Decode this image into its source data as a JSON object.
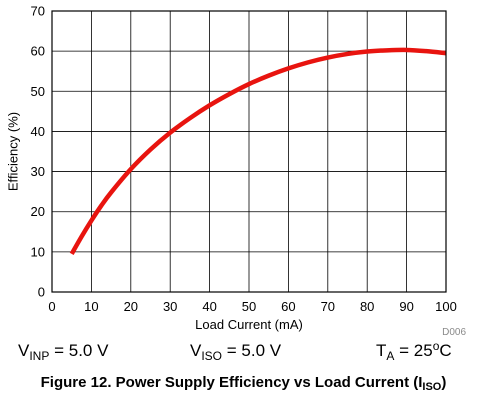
{
  "chart_data": {
    "type": "line",
    "title": "",
    "xlabel": "Load Current (mA)",
    "ylabel": "Efficiency (%)",
    "xlim": [
      0,
      100
    ],
    "ylim": [
      0,
      70
    ],
    "xticks": [
      0,
      10,
      20,
      30,
      40,
      50,
      60,
      70,
      80,
      90,
      100
    ],
    "yticks": [
      0,
      10,
      20,
      30,
      40,
      50,
      60,
      70
    ],
    "grid": true,
    "series": [
      {
        "color": "#e8140f",
        "x": [
          5,
          7.5,
          10,
          12.5,
          15,
          20,
          25,
          30,
          35,
          40,
          45,
          50,
          55,
          60,
          65,
          70,
          75,
          80,
          85,
          90,
          95,
          100
        ],
        "y": [
          9.5,
          13.8,
          17.8,
          21.5,
          24.8,
          30.6,
          35.5,
          39.7,
          43.3,
          46.5,
          49.3,
          51.8,
          53.9,
          55.7,
          57.2,
          58.4,
          59.3,
          59.9,
          60.2,
          60.3,
          60.0,
          59.5
        ]
      }
    ],
    "annotation": "D006"
  },
  "conditions": {
    "vinp": {
      "main": "V",
      "sub": "INP",
      "rest": " = 5.0 V"
    },
    "viso": {
      "main": "V",
      "sub": "ISO",
      "rest": " = 5.0 V"
    },
    "ta": {
      "main": "T",
      "sub": "A",
      "rest": " = 25",
      "sup": "o",
      "unit": "C"
    }
  },
  "caption": {
    "text": "Figure 12. Power Supply Efficiency vs Load Current (I",
    "sub": "ISO",
    "close": ")"
  }
}
